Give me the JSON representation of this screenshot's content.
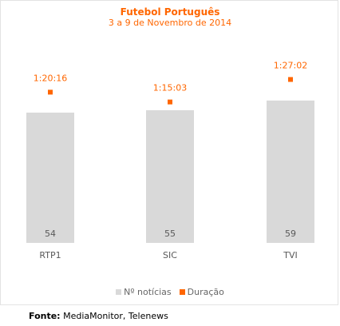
{
  "chart_data": {
    "type": "bar",
    "title": "Futebol Português",
    "subtitle": "3 a 9 de Novembro de 2014",
    "categories": [
      "RTP1",
      "SIC",
      "TVI"
    ],
    "series": [
      {
        "name": "Nº notícias",
        "type": "bar",
        "color": "#d9d9d9",
        "values": [
          54,
          55,
          59
        ],
        "labels": [
          "54",
          "55",
          "59"
        ]
      },
      {
        "name": "Duração",
        "type": "point",
        "color": "#ff6600",
        "values_seconds": [
          4816,
          4503,
          5222
        ],
        "labels": [
          "1:20:16",
          "1:15:03",
          "1:27:02"
        ]
      }
    ],
    "legend_position": "bottom",
    "grid": false
  },
  "source": {
    "label": "Fonte:",
    "text": " MediaMonitor, Telenews"
  }
}
